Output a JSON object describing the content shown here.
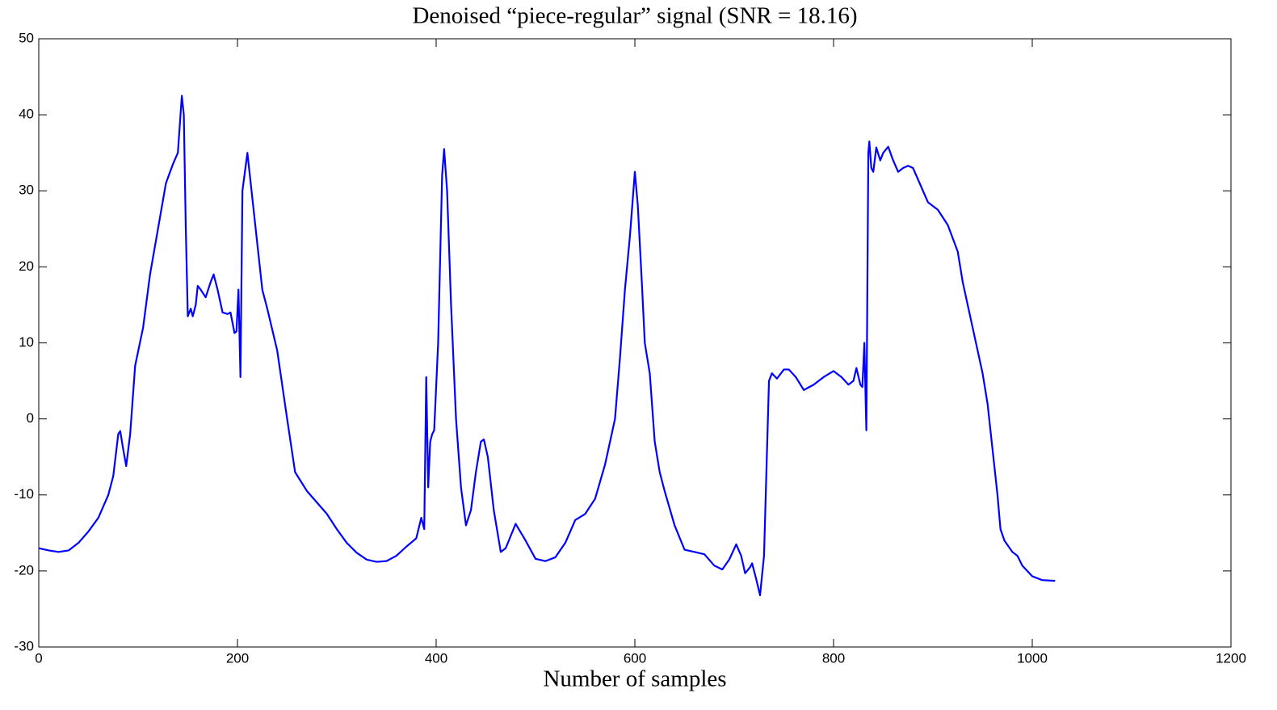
{
  "chart_data": {
    "type": "line",
    "title": "Denoised “piece-regular” signal (SNR = 18.16)",
    "x_label": "Number of samples",
    "xlim": [
      0,
      1200
    ],
    "xticks": [
      0,
      200,
      400,
      600,
      800,
      1000,
      1200
    ],
    "ylim": [
      -30,
      50
    ],
    "yticks": [
      -30,
      -20,
      -10,
      0,
      10,
      20,
      30,
      40,
      50
    ],
    "x": [
      0,
      10,
      20,
      30,
      40,
      50,
      60,
      70,
      75,
      80,
      82,
      85,
      88,
      92,
      97,
      105,
      112,
      120,
      128,
      135,
      140,
      144,
      146,
      148,
      150,
      153,
      155,
      158,
      160,
      163,
      168,
      173,
      176,
      180,
      185,
      190,
      193,
      197,
      199,
      201,
      203,
      205,
      210,
      215,
      220,
      225,
      230,
      240,
      250,
      258,
      270,
      280,
      290,
      300,
      310,
      320,
      330,
      340,
      350,
      360,
      370,
      380,
      385,
      388,
      390,
      392,
      394,
      396,
      398,
      402,
      406,
      408,
      411,
      415,
      420,
      425,
      430,
      435,
      440,
      445,
      448,
      452,
      458,
      465,
      470,
      480,
      490,
      500,
      510,
      520,
      530,
      540,
      550,
      560,
      570,
      580,
      585,
      590,
      595,
      600,
      603,
      607,
      610,
      615,
      620,
      625,
      630,
      640,
      650,
      660,
      670,
      680,
      688,
      695,
      702,
      707,
      711,
      716,
      718,
      722,
      726,
      730,
      735,
      738,
      743,
      750,
      755,
      762,
      770,
      780,
      790,
      800,
      808,
      815,
      820,
      823,
      827,
      829,
      831,
      833,
      835,
      836,
      838,
      840,
      843,
      847,
      850,
      855,
      860,
      865,
      870,
      875,
      880,
      890,
      895,
      905,
      915,
      925,
      930,
      940,
      950,
      955,
      960,
      965,
      968,
      972,
      980,
      985,
      990,
      1000,
      1010,
      1023
    ],
    "series": [
      {
        "color": "#0000ff",
        "values": [
          -17,
          -17.3,
          -17.5,
          -17.3,
          -16.3,
          -14.8,
          -13,
          -10,
          -7.5,
          -2,
          -1.6,
          -4,
          -6.2,
          -2,
          7,
          12,
          19,
          25,
          31,
          33.5,
          35,
          42.5,
          40,
          25,
          13.5,
          14.5,
          13.5,
          15,
          17.5,
          17,
          16,
          18,
          19,
          17,
          14,
          13.8,
          14,
          11.3,
          11.5,
          17,
          5.5,
          30,
          35,
          29,
          23,
          17,
          14.5,
          9,
          0,
          -7,
          -9.5,
          -11,
          -12.5,
          -14.5,
          -16.3,
          -17.6,
          -18.5,
          -18.8,
          -18.7,
          -18,
          -16.8,
          -15.7,
          -13,
          -14.5,
          5.5,
          -9,
          -3,
          -2,
          -1.5,
          10,
          32,
          35.5,
          30,
          15,
          0,
          -9,
          -14,
          -12,
          -7,
          -3,
          -2.7,
          -5,
          -12,
          -17.5,
          -17,
          -13.8,
          -16,
          -18.4,
          -18.7,
          -18.2,
          -16.3,
          -13.3,
          -12.5,
          -10.5,
          -6,
          0,
          8,
          17,
          24,
          32.5,
          28,
          18,
          10,
          6,
          -3,
          -7,
          -9.5,
          -14,
          -17.2,
          -17.5,
          -17.8,
          -19.3,
          -19.8,
          -18.5,
          -16.5,
          -18,
          -20.3,
          -19.5,
          -19,
          -21,
          -23.2,
          -18,
          5,
          6,
          5.3,
          6.5,
          6.5,
          5.5,
          3.8,
          4.5,
          5.5,
          6.3,
          5.5,
          4.5,
          5,
          6.7,
          4.5,
          4.2,
          10,
          -1.5,
          35,
          36.5,
          33,
          32.5,
          35.7,
          34,
          35,
          35.8,
          34,
          32.5,
          33,
          33.3,
          33,
          30,
          28.5,
          27.5,
          25.5,
          22,
          18,
          12,
          6,
          2,
          -4,
          -10,
          -14.5,
          -16,
          -17.5,
          -18,
          -19.3,
          -20.7,
          -21.2,
          -21.3
        ]
      }
    ]
  }
}
